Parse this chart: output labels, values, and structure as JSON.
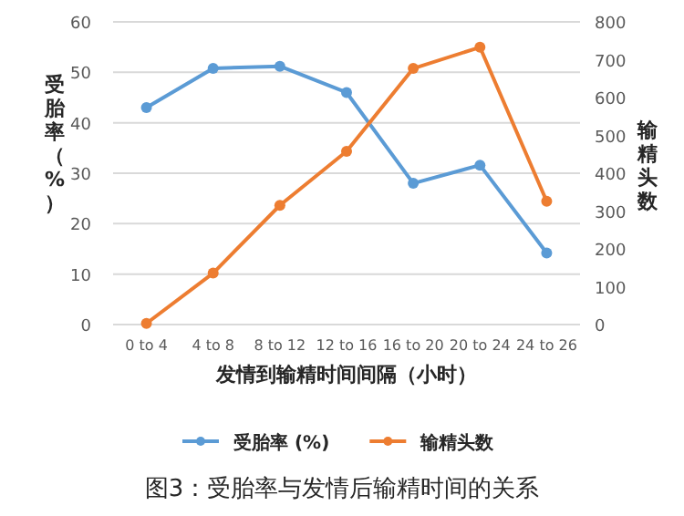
{
  "chart_data": {
    "type": "line",
    "title": "图3：受胎率与发情后输精时间的关系",
    "xlabel": "发情到输精时间间隔（小时）",
    "ylabel": "受胎率（%）",
    "y2label": "输精头数",
    "categories": [
      "0 to 4",
      "4 to 8",
      "8 to 12",
      "12 to 16",
      "16 to 20",
      "20 to 24",
      "24 to 26"
    ],
    "series": [
      {
        "name": "受胎率 (%)",
        "color": "#5b9bd5",
        "values": [
          43.0,
          50.8,
          51.2,
          46.0,
          28.0,
          31.6,
          14.2
        ]
      },
      {
        "name": "输精头数",
        "color": "#ed7d31",
        "axis": "y2",
        "values": [
          3,
          136,
          315,
          458,
          677,
          733,
          326
        ]
      }
    ],
    "ylim": [
      0,
      60
    ],
    "yticks": [
      0,
      10,
      20,
      30,
      40,
      50,
      60
    ],
    "y2lim": [
      0,
      800
    ],
    "y2ticks": [
      0,
      100,
      200,
      300,
      400,
      500,
      600,
      700,
      800
    ],
    "grid": "y",
    "legend": "bottom",
    "marker": "circle",
    "line_style": "solid"
  }
}
